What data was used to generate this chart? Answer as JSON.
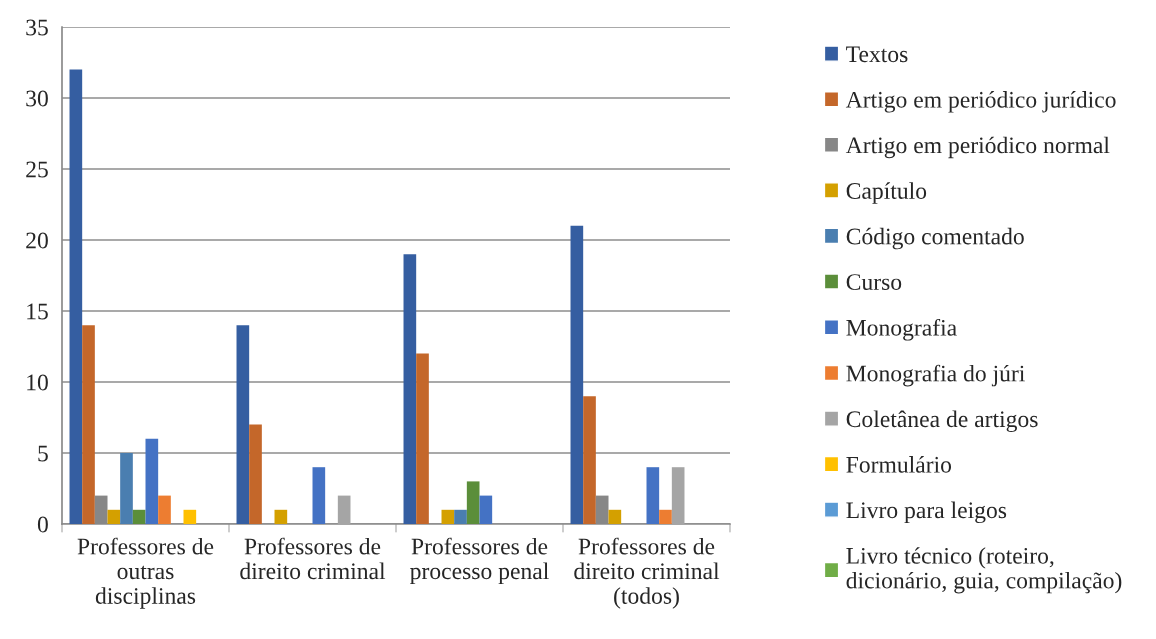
{
  "chart_data": {
    "type": "bar",
    "categories": [
      "Professores de\noutras\ndisciplinas",
      "Professores de\ndireito criminal",
      "Professores de\nprocesso penal",
      "Professores de\ndireito criminal\n(todos)"
    ],
    "series": [
      {
        "name": "Textos",
        "color": "#355ea1",
        "values": [
          32,
          14,
          19,
          21
        ]
      },
      {
        "name": "Artigo em periódico jurídico",
        "color": "#c4672a",
        "values": [
          14,
          7,
          12,
          9
        ]
      },
      {
        "name": "Artigo em periódico normal",
        "color": "#878787",
        "values": [
          2,
          0,
          0,
          2
        ]
      },
      {
        "name": "Capítulo",
        "color": "#d4a000",
        "values": [
          1,
          1,
          1,
          1
        ]
      },
      {
        "name": "Código comentado",
        "color": "#4a7eb0",
        "values": [
          5,
          0,
          1,
          0
        ]
      },
      {
        "name": "Curso",
        "color": "#5b8e3a",
        "values": [
          1,
          0,
          3,
          0
        ]
      },
      {
        "name": "Monografia",
        "color": "#4472c4",
        "values": [
          6,
          4,
          2,
          4
        ]
      },
      {
        "name": "Monografia do júri",
        "color": "#ed7d31",
        "values": [
          2,
          0,
          0,
          1
        ]
      },
      {
        "name": "Coletânea de artigos",
        "color": "#a5a5a5",
        "values": [
          0,
          2,
          0,
          4
        ]
      },
      {
        "name": "Formulário",
        "color": "#ffc000",
        "values": [
          1,
          0,
          0,
          0
        ]
      },
      {
        "name": "Livro para leigos",
        "color": "#5b9bd5",
        "values": [
          0,
          0,
          0,
          0
        ]
      },
      {
        "name": "Livro técnico (roteiro,\ndicionário, guia, compilação)",
        "color": "#70ad47",
        "values": [
          0,
          0,
          0,
          0
        ]
      }
    ],
    "ylim": [
      0,
      35
    ],
    "yticks": [
      0,
      5,
      10,
      15,
      20,
      25,
      30,
      35
    ],
    "grid": "y",
    "legend": "right"
  }
}
